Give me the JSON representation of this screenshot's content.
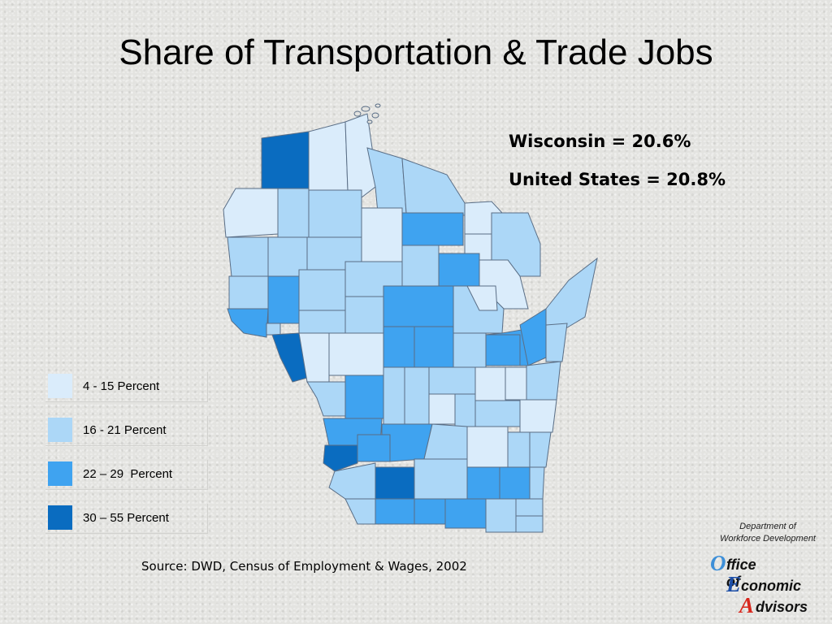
{
  "title": "Share of Transportation & Trade Jobs",
  "stats": {
    "wisconsin": "Wisconsin = 20.6%",
    "united_states": "United States = 20.8%"
  },
  "legend": [
    {
      "label": "4 - 15 Percent",
      "color": "#daecfb"
    },
    {
      "label": "16 - 21 Percent",
      "color": "#acd7f7"
    },
    {
      "label": "22 – 29  Percent",
      "color": "#3fa3f0"
    },
    {
      "label": "30 – 55 Percent",
      "color": "#0a6cc0"
    }
  ],
  "source": "Source: DWD, Census of Employment & Wages, 2002",
  "logo": {
    "department_line1": "Department of",
    "department_line2": "Workforce Development",
    "o_letter": "O",
    "o_rest": "ffice of",
    "e_letter": "E",
    "e_rest": "conomic",
    "a_letter": "A",
    "a_rest": "dvisors",
    "o_color": "#3d8fd8",
    "e_color": "#1d4fa8",
    "a_color": "#d8281e"
  },
  "colors": {
    "c1": "#daecfb",
    "c2": "#acd7f7",
    "c3": "#3fa3f0",
    "c4": "#0a6cc0"
  }
}
